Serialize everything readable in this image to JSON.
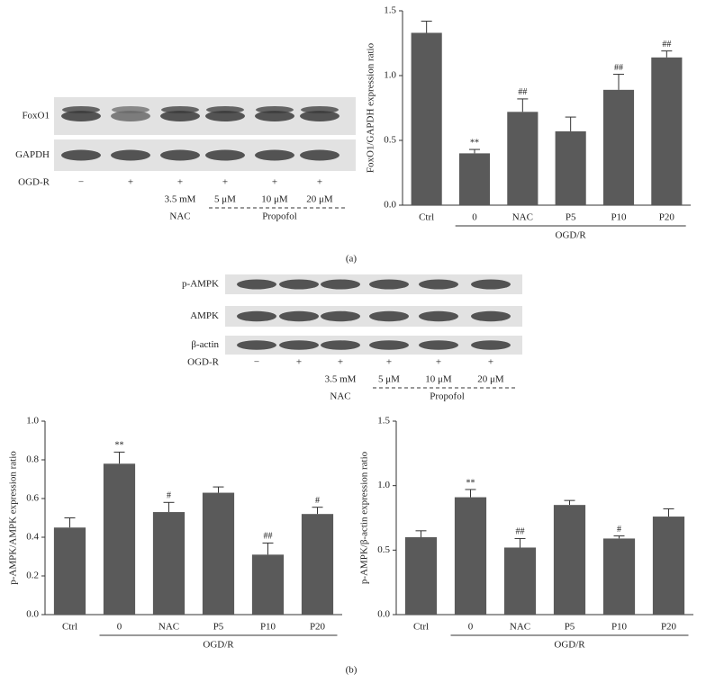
{
  "chart_data": [
    {
      "type": "bar",
      "y_label": "FoxO1/GAPDH expression ratio",
      "categories": [
        "Ctrl",
        "0",
        "NAC",
        "P5",
        "P10",
        "P20"
      ],
      "values": [
        1.33,
        0.4,
        0.72,
        0.57,
        0.89,
        1.14
      ],
      "errors": [
        0.09,
        0.03,
        0.1,
        0.11,
        0.12,
        0.05
      ],
      "annotations": [
        null,
        "**",
        "##",
        null,
        "##",
        "##"
      ],
      "group_label": "OGD/R",
      "color": "#5a5a5a",
      "ylim": [
        0,
        1.5
      ],
      "yticks": [
        {
          "value": 0,
          "label": "0.0"
        },
        0.5,
        {
          "value": 1,
          "label": "1.0"
        },
        1.5
      ]
    },
    {
      "type": "bar",
      "y_label": "p-AMPK/AMPK expression ratio",
      "categories": [
        "Ctrl",
        "0",
        "NAC",
        "P5",
        "P10",
        "P20"
      ],
      "values": [
        0.45,
        0.78,
        0.53,
        0.63,
        0.31,
        0.52
      ],
      "errors": [
        0.05,
        0.06,
        0.05,
        0.03,
        0.06,
        0.035
      ],
      "annotations": [
        null,
        "**",
        "#",
        null,
        "##",
        "#"
      ],
      "group_label": "OGD/R",
      "color": "#5a5a5a",
      "ylim": [
        0,
        1
      ],
      "yticks": [
        {
          "value": 0,
          "label": "0.0"
        },
        0.2,
        0.4,
        0.6,
        0.8,
        {
          "value": 1,
          "label": "1.0"
        }
      ]
    },
    {
      "type": "bar",
      "y_label": "p-AMPK/β-actin expression ratio",
      "categories": [
        "Ctrl",
        "0",
        "NAC",
        "P5",
        "P10",
        "P20"
      ],
      "values": [
        0.6,
        0.91,
        0.52,
        0.85,
        0.59,
        0.76
      ],
      "errors": [
        0.05,
        0.06,
        0.07,
        0.035,
        0.02,
        0.06
      ],
      "annotations": [
        null,
        "**",
        "##",
        null,
        "#",
        null
      ],
      "group_label": "OGD/R",
      "color": "#5a5a5a",
      "ylim": [
        0,
        1.5
      ],
      "yticks": [
        {
          "value": 0,
          "label": "0.0"
        },
        0.5,
        {
          "value": 1,
          "label": "1.0"
        },
        1.5
      ]
    }
  ],
  "blots": [
    {
      "rows": [
        "FoxO1",
        "GAPDH"
      ],
      "treatment_label": "OGD-R",
      "treatment": [
        "−",
        "+",
        "+",
        "+",
        "+",
        "+"
      ],
      "doses": [
        "3.5 mM",
        "5 μM",
        "10 μM",
        "20 μM"
      ],
      "drugs": [
        "NAC",
        "Propofol"
      ]
    },
    {
      "rows": [
        "p-AMPK",
        "AMPK",
        "β-actin"
      ],
      "treatment_label": "OGD-R",
      "treatment": [
        "−",
        "+",
        "+",
        "+",
        "+",
        "+"
      ],
      "doses": [
        "3.5 mM",
        "5 μM",
        "10 μM",
        "20 μM"
      ],
      "drugs": [
        "NAC",
        "Propofol"
      ]
    }
  ],
  "panel_labels": [
    "(a)",
    "(b)"
  ]
}
